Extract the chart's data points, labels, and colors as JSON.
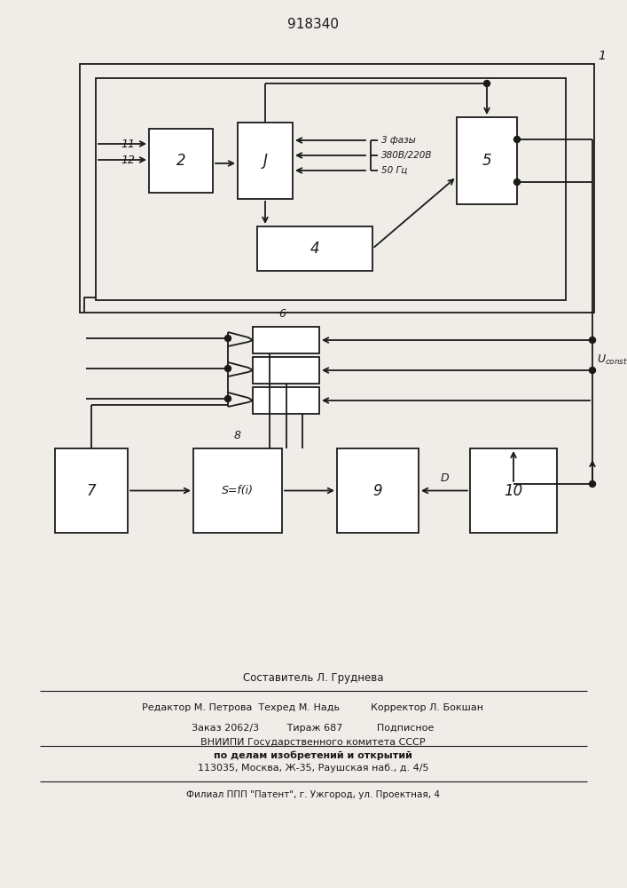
{
  "title": "918340",
  "bg_color": "#f0ede8",
  "line_color": "#1a1a1a",
  "fig_width": 7.07,
  "fig_height": 10.0,
  "footer_lines": [
    "Составитель Л. Груднева",
    "Редактор М. Петрова  Техред М. Надь          Корректор Л. Бокшан",
    "Заказ 2062/3         Тираж 687           Подписное",
    "ВНИИПИ Государственного комитета СССР",
    "по делам изобретений и открытий",
    "113035, Москва, Ж-35, Раушская наб., д. 4/5",
    "Филиал ППП \"Патент\", г. Ужгород, ул. Проектная, 4"
  ]
}
